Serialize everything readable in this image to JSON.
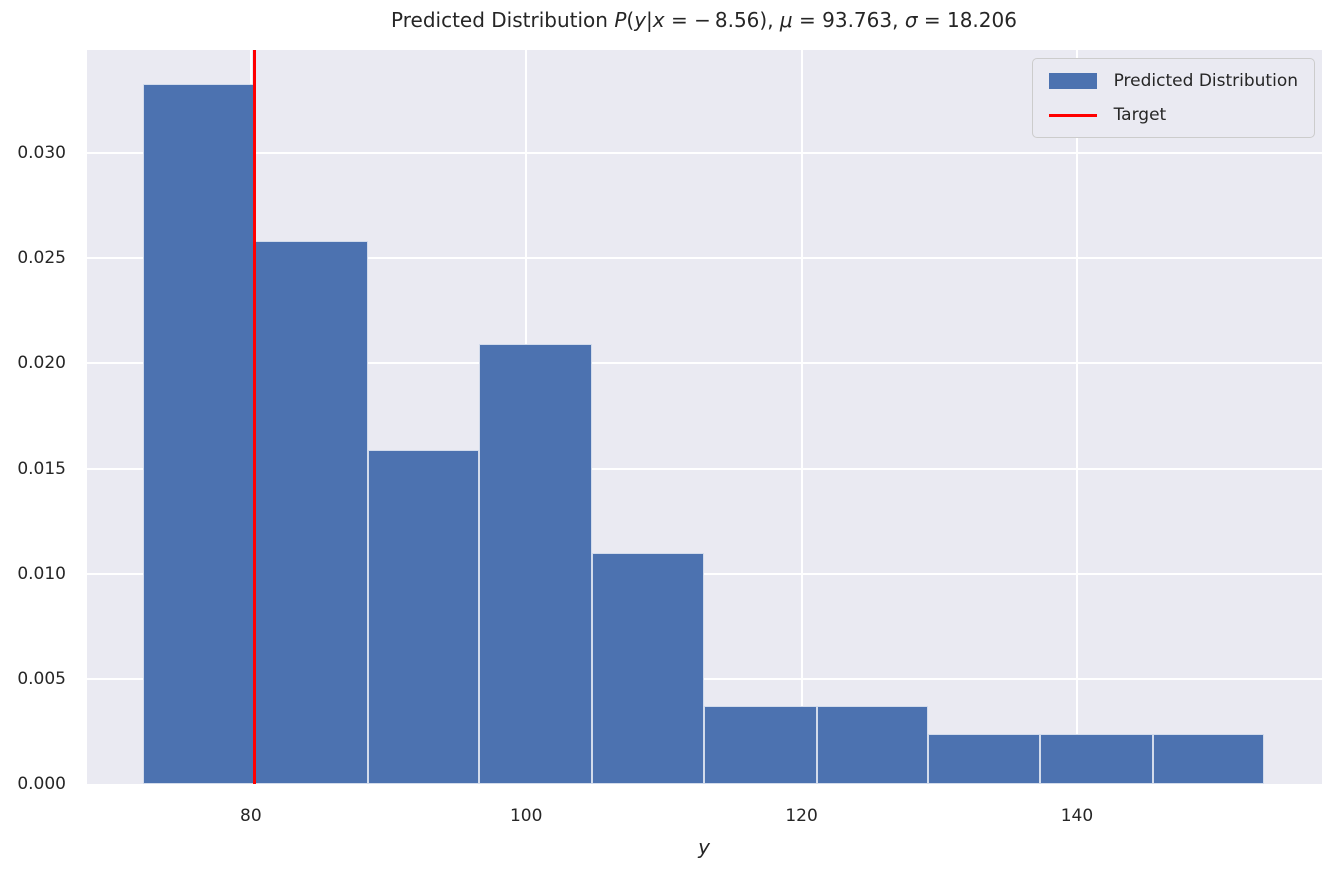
{
  "title": {
    "text": "Predicted Distribution P(y|x = −8.56), μ = 93.763, σ = 18.206",
    "segments": [
      {
        "text": "Predicted Distribution ",
        "italic": false
      },
      {
        "text": "P",
        "italic": true
      },
      {
        "text": "(",
        "italic": false
      },
      {
        "text": "y",
        "italic": true
      },
      {
        "text": "|",
        "italic": false
      },
      {
        "text": "x",
        "italic": true
      },
      {
        "text": " = − 8.56), ",
        "italic": false
      },
      {
        "text": "μ",
        "italic": true
      },
      {
        "text": " = 93.763, ",
        "italic": false
      },
      {
        "text": "σ",
        "italic": true
      },
      {
        "text": " = 18.206",
        "italic": false
      }
    ]
  },
  "legend": {
    "items": [
      {
        "label": "Predicted Distribution",
        "marker": "patch",
        "color": "#4c72b0"
      },
      {
        "label": "Target",
        "marker": "line",
        "color": "#ff0000"
      }
    ]
  },
  "colors": {
    "figure_background": "#ffffff",
    "axes_background": "#eaeaf2",
    "grid": "#ffffff",
    "bar_fill": "#4c72b0",
    "bar_edge": "rgba(255,255,255,0.75)",
    "target_line": "#ff0000",
    "text": "#262626",
    "legend_border": "#cccccc",
    "legend_background": "#eaeaf2"
  },
  "chart_data": {
    "type": "bar",
    "subtype": "histogram",
    "title": "Predicted Distribution P(y|x = −8.56), μ = 93.763, σ = 18.206",
    "xlabel": "y",
    "ylabel": "",
    "x_condition": -8.56,
    "mu": 93.763,
    "sigma": 18.206,
    "bin_edges": [
      72.2,
      80.3,
      88.5,
      96.6,
      104.8,
      112.9,
      121.1,
      129.2,
      137.3,
      145.5,
      153.6
    ],
    "densities": [
      0.0333,
      0.0258,
      0.0159,
      0.0209,
      0.011,
      0.0037,
      0.0037,
      0.0024,
      0.0024,
      0.0024
    ],
    "target_x": 80.3,
    "xlim": [
      68.1,
      157.8
    ],
    "ylim": [
      0,
      0.0349
    ],
    "xticks": {
      "values": [
        80,
        100,
        120,
        140
      ],
      "labels": [
        "80",
        "100",
        "120",
        "140"
      ]
    },
    "yticks": {
      "values": [
        0,
        0.005,
        0.01,
        0.015,
        0.02,
        0.025,
        0.03
      ],
      "labels": [
        "0.000",
        "0.005",
        "0.010",
        "0.015",
        "0.020",
        "0.025",
        "0.030"
      ]
    },
    "grid": true,
    "legend_position": "upper right"
  }
}
